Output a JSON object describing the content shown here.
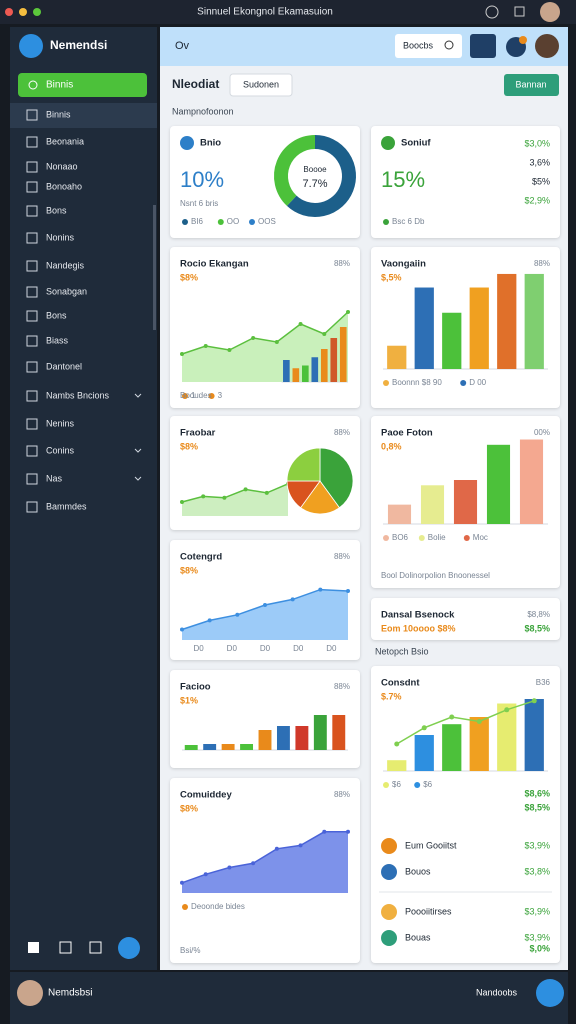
{
  "window_title": "Sinnuel Ekongnol Ekamasuion",
  "sidebar": {
    "brand": "Nemendsi",
    "button": "Binnis",
    "items": [
      "Binnis",
      "Beonania",
      "Nonaao",
      "Bonoaho",
      "Bons",
      "Nonins",
      "Nandegis",
      "Sonabgan",
      "Bons",
      "Biass",
      "Dantonel",
      "Nambs Bncions",
      "Nenins",
      "Conins",
      "Nas",
      "Bammdes"
    ],
    "user": "Nemdsbsi",
    "status": "Nandoobs"
  },
  "header": {
    "title": "Ov",
    "search": "Boocbs"
  },
  "toolbar": {
    "title": "Nleodiat",
    "tab": "Sudonen",
    "action": "Bannan",
    "section": "Nampnofoonon",
    "section_right": "Netopch Bsio"
  },
  "cards": [
    {
      "title": "Bnio",
      "value": "10%",
      "accent": "#2d7fc8",
      "subtitle": "Nsnt 6 bris",
      "legend": [
        "BI6",
        "OO",
        "OOS"
      ],
      "charts": [
        {
          "type": "donut",
          "values": [
            62,
            38
          ],
          "colors": [
            "#1c5f8a",
            "#4cc13a"
          ],
          "center": [
            "Boooe",
            "7.7%"
          ]
        }
      ]
    },
    {
      "title": "Rocio Ekangan",
      "value": "$8%",
      "note": "88%",
      "legend": [
        "1",
        "3"
      ],
      "footer": "Booudes",
      "charts": [
        {
          "type": "area",
          "values": [
            28,
            36,
            32,
            44,
            40,
            58,
            48,
            70
          ],
          "color": "#5bbf3e",
          "fill": "#c9f0bb",
          "ylim": [
            0,
            100
          ]
        },
        {
          "type": "bars",
          "values": [
            40,
            25,
            30,
            45,
            60,
            80,
            100
          ],
          "colors": [
            "#2d6fb5",
            "#e98a1b",
            "#4cc13a",
            "#2d6fb5",
            "#e98a1b",
            "#d0592a",
            "#e98a1b"
          ],
          "ylim": [
            0,
            100
          ]
        }
      ]
    },
    {
      "title": "Fraobar",
      "value": "$8%",
      "note": "88%",
      "charts": [
        {
          "type": "area",
          "values": [
            20,
            28,
            26,
            38,
            33,
            46
          ],
          "color": "#5bbf3e",
          "fill": "#cdeec0",
          "ylim": [
            0,
            100
          ]
        },
        {
          "type": "pie",
          "values": [
            40,
            20,
            15,
            25
          ],
          "colors": [
            "#3aa33a",
            "#f0a020",
            "#d9531e",
            "#8ccf3f"
          ]
        }
      ]
    },
    {
      "title": "Cotengrd",
      "value": "$8%",
      "note": "88%",
      "xlabels": [
        "D0",
        "D0",
        "D0",
        "D0",
        "D0"
      ],
      "charts": [
        {
          "type": "area",
          "values": [
            15,
            28,
            36,
            50,
            58,
            72,
            70
          ],
          "color": "#3d8fe0",
          "fill": "#9ccbf8",
          "ylim": [
            0,
            100
          ]
        }
      ]
    },
    {
      "title": "Facioo",
      "value": "$1%",
      "note": "88%",
      "charts": [
        {
          "type": "bars",
          "values": [
            10,
            12,
            12,
            12,
            40,
            48,
            48,
            70,
            70
          ],
          "colors": [
            "#4cc13a",
            "#2d6fb5",
            "#e98a1b",
            "#4cc13a",
            "#e98a1b",
            "#2d6fb5",
            "#d0392a",
            "#3aa33a",
            "#d9531e"
          ],
          "ylim": [
            0,
            100
          ]
        }
      ]
    },
    {
      "title": "Comuiddey",
      "value": "$8%",
      "note": "88%",
      "legend": [
        "Deoonde bides"
      ],
      "footer": "Bsi/%",
      "charts": [
        {
          "type": "area",
          "values": [
            12,
            22,
            30,
            35,
            52,
            56,
            72,
            72
          ],
          "color": "#4a63d8",
          "fill": "#7d92ea",
          "ylim": [
            0,
            100
          ]
        }
      ]
    },
    {
      "title": "Soniuf",
      "value": "15%",
      "accent": "#3aa33a",
      "legend": [
        "Bsc 6 Db"
      ],
      "list": [
        "$3,0%",
        "3,6%",
        "$5%",
        "$2,9%"
      ]
    },
    {
      "title": "Vaongaiin",
      "value": "$,5%",
      "note": "88%",
      "legend": [
        "Boonnn $8 90",
        "D 00"
      ],
      "charts": [
        {
          "type": "bars",
          "values": [
            24,
            84,
            58,
            84,
            98,
            98
          ],
          "colors": [
            "#f0b040",
            "#2d6fb5",
            "#4cc13a",
            "#f0a020",
            "#e0702a",
            "#7fcf70"
          ],
          "ylim": [
            0,
            100
          ]
        }
      ]
    },
    {
      "title": "Paoe Foton",
      "value": "0,8%",
      "note": "00%",
      "legend": [
        "BO6",
        "Bolie",
        "Moc"
      ],
      "footer": "Bool Dolinorpolion Bnoonessel",
      "charts": [
        {
          "type": "bars",
          "values": [
            22,
            44,
            50,
            90,
            96
          ],
          "colors": [
            "#f0b8a0",
            "#e6ec90",
            "#e06848",
            "#4cc13a",
            "#f4a890"
          ],
          "ylim": [
            0,
            100
          ]
        }
      ]
    },
    {
      "title": "Dansal Bsenock",
      "value": "Eom 10oooo $8%",
      "note": "$8,8%",
      "extra": "$8,5%"
    },
    {
      "title": "Consdnt",
      "value": "$.7%",
      "note": "B36",
      "legend": [
        "$6",
        "$6"
      ],
      "summary": [
        "$8,6%",
        "$8,5%"
      ],
      "footer": "$,0%",
      "charts": [
        {
          "type": "bars",
          "values": [
            12,
            40,
            52,
            60,
            75,
            80
          ],
          "colors": [
            "#e6ec70",
            "#2d8fe0",
            "#4cc13a",
            "#f0a020",
            "#e6ec70",
            "#2d6fb5"
          ],
          "ylim": [
            0,
            100
          ]
        },
        {
          "type": "line",
          "values": [
            30,
            48,
            60,
            55,
            68,
            78
          ],
          "color": "#7fcf50",
          "ylim": [
            0,
            100
          ]
        }
      ],
      "rows": [
        {
          "label": "Eum Gooiitst",
          "value": "$3,9%",
          "color": "#e98a1b"
        },
        {
          "label": "Bouos",
          "value": "$3,8%",
          "color": "#2d6fb5"
        },
        {
          "label": "Poooiitirses",
          "value": "$3,9%",
          "color": "#f0b040"
        },
        {
          "label": "Bouas",
          "value": "$3,9%",
          "color": "#2e9e7a"
        }
      ]
    }
  ]
}
